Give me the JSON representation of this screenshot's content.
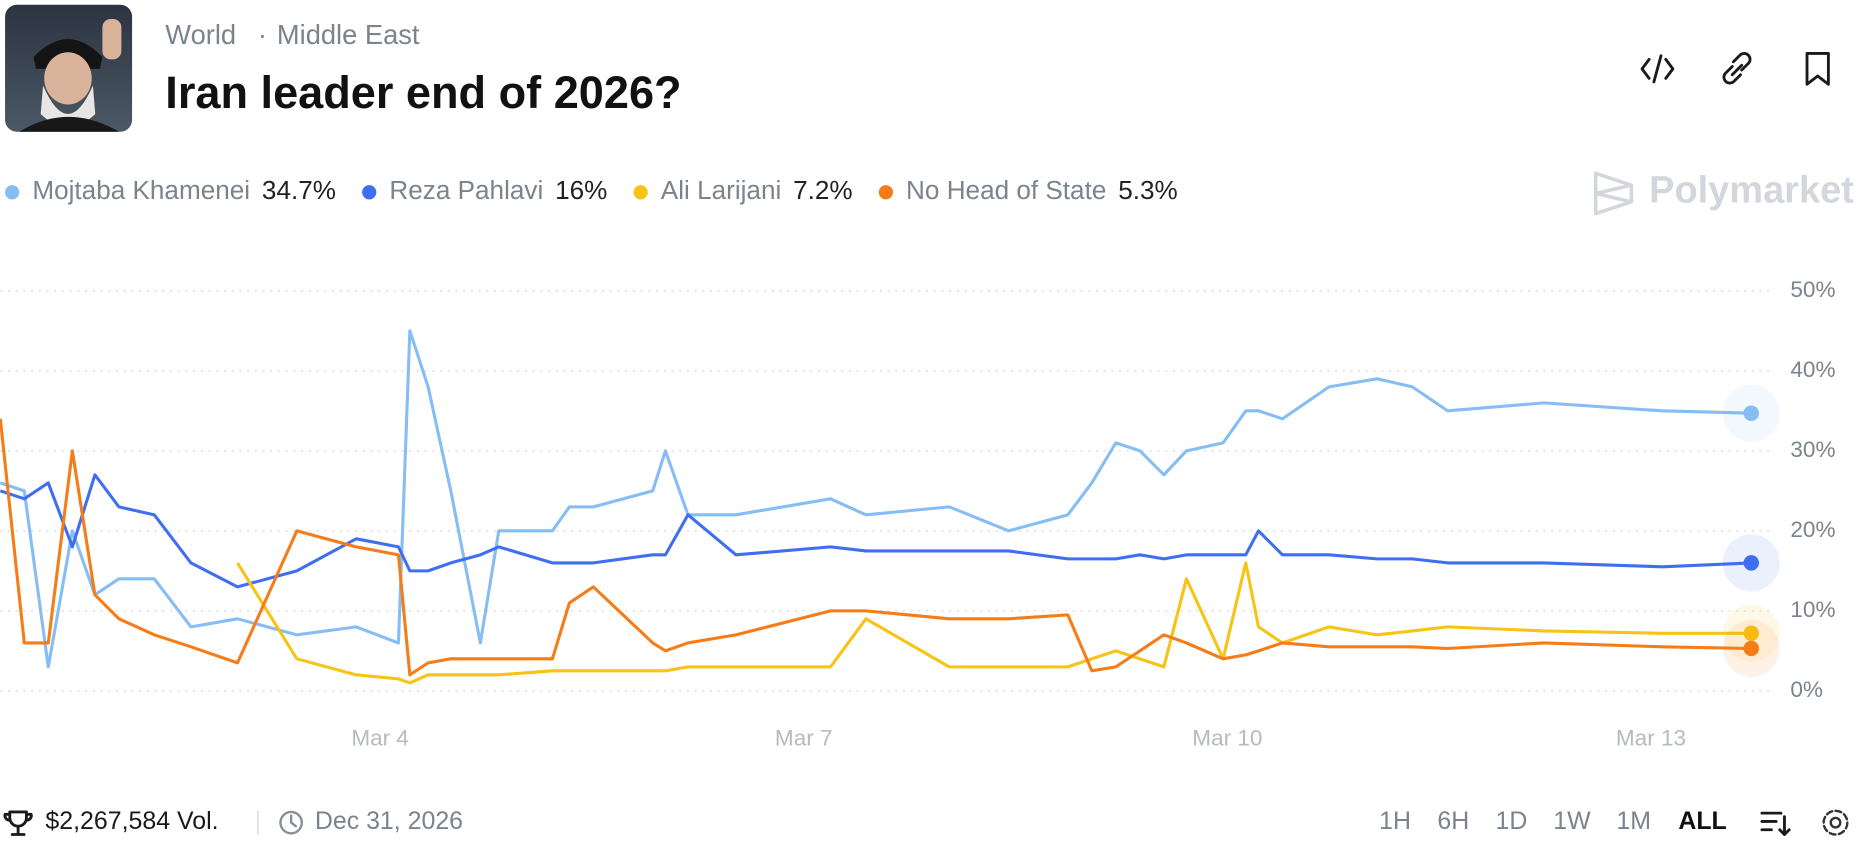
{
  "header": {
    "breadcrumb": [
      "World",
      "Middle East"
    ],
    "title": "Iran leader end of 2026?"
  },
  "brand": "Polymarket",
  "footer": {
    "volume": "$2,267,584 Vol.",
    "end_date": "Dec 31, 2026",
    "ranges": [
      "1H",
      "6H",
      "1D",
      "1W",
      "1M",
      "ALL"
    ],
    "active_range": "ALL"
  },
  "chart_data": {
    "type": "line",
    "x": [
      1.31,
      1.48,
      1.65,
      1.82,
      1.98,
      2.15,
      2.4,
      2.66,
      2.99,
      3.41,
      3.83,
      4.13,
      4.21,
      4.34,
      4.5,
      4.71,
      4.84,
      5.22,
      5.34,
      5.51,
      5.93,
      6.02,
      6.18,
      6.52,
      7.19,
      7.44,
      8.03,
      8.45,
      8.87,
      9.04,
      9.21,
      9.38,
      9.55,
      9.71,
      9.97,
      10.13,
      10.22,
      10.39,
      10.72,
      11.06,
      11.31,
      11.56,
      12.24,
      13.08,
      13.71
    ],
    "series": [
      {
        "name": "Mojtaba Khamenei",
        "color": "#85bdf4",
        "legend_value": "34.7%",
        "values": [
          26,
          25,
          3,
          20,
          12,
          14,
          14,
          8,
          9,
          7,
          8,
          6,
          45,
          38,
          25,
          6,
          20,
          20,
          23,
          23,
          25,
          30,
          22,
          22,
          24,
          22,
          23,
          20,
          22,
          26,
          31,
          30,
          27,
          30,
          31,
          35,
          35,
          34,
          38,
          39,
          38,
          35,
          36,
          35,
          34.7
        ]
      },
      {
        "name": "Reza Pahlavi",
        "color": "#3f6ff0",
        "legend_value": "16%",
        "values": [
          25,
          24,
          26,
          18,
          27,
          23,
          22,
          16,
          13,
          15,
          19,
          18,
          15,
          15,
          16,
          17,
          18,
          16,
          16,
          16,
          17,
          17,
          22,
          17,
          18,
          17.5,
          17.5,
          17.5,
          16.5,
          16.5,
          16.5,
          17,
          16.5,
          17,
          17,
          17,
          20,
          17,
          17,
          16.5,
          16.5,
          16,
          16,
          15.5,
          16
        ]
      },
      {
        "name": "Ali Larijani",
        "color": "#f7c315",
        "legend_value": "7.2%",
        "values": [
          null,
          null,
          null,
          null,
          null,
          null,
          null,
          null,
          16,
          4,
          2,
          1.5,
          1,
          2,
          2,
          2,
          2,
          2.5,
          2.5,
          2.5,
          2.5,
          2.5,
          3,
          3,
          3,
          9,
          3,
          3,
          3,
          4,
          5,
          4,
          3,
          14,
          4,
          16,
          8,
          6,
          8,
          7,
          7.5,
          8,
          7.5,
          7.2,
          7.2
        ]
      },
      {
        "name": "No Head of State",
        "color": "#f67c17",
        "legend_value": "5.3%",
        "values": [
          34,
          6,
          6,
          30,
          12,
          9,
          7,
          5.5,
          3.5,
          20,
          18,
          17,
          2,
          3.5,
          4,
          4,
          4,
          4,
          11,
          13,
          6,
          5,
          6,
          7,
          10,
          10,
          9,
          9,
          9.5,
          2.5,
          3,
          5,
          7,
          6,
          4,
          4.5,
          5,
          6,
          5.5,
          5.5,
          5.5,
          5.3,
          6,
          5.5,
          5.3
        ]
      }
    ],
    "xlim": [
      1.31,
      13.92
    ],
    "xticks": [
      {
        "value": 4,
        "label": "Mar 4"
      },
      {
        "value": 7,
        "label": "Mar 7"
      },
      {
        "value": 10,
        "label": "Mar 10"
      },
      {
        "value": 13,
        "label": "Mar 13"
      }
    ],
    "ylim": [
      0,
      50
    ],
    "yticks": [
      {
        "value": 0,
        "label": "0%"
      },
      {
        "value": 10,
        "label": "10%"
      },
      {
        "value": 20,
        "label": "20%"
      },
      {
        "value": 30,
        "label": "30%"
      },
      {
        "value": 40,
        "label": "40%"
      },
      {
        "value": 50,
        "label": "50%"
      }
    ],
    "grid": true
  }
}
